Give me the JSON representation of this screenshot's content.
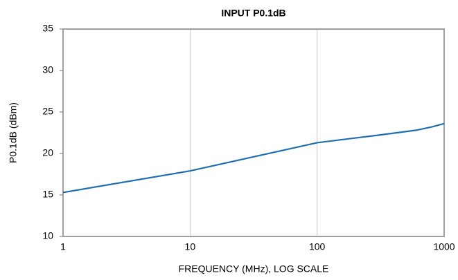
{
  "chart_data": {
    "type": "line",
    "title": "INPUT P0.1dB",
    "xlabel": "FREQUENCY (MHz), LOG SCALE",
    "ylabel": "P0.1dB (dBm)",
    "x": [
      1,
      10,
      100,
      300,
      600,
      800,
      1000
    ],
    "series": [
      {
        "name": "P0.1dB",
        "color": "#1f6fb0",
        "values": [
          15.3,
          17.9,
          21.3,
          22.2,
          22.8,
          23.2,
          23.6
        ]
      }
    ],
    "xlim": [
      1,
      1000
    ],
    "xticks": [
      1,
      10,
      100,
      1000
    ],
    "xscale": "log",
    "ylim": [
      10,
      35
    ],
    "yticks": [
      10,
      15,
      20,
      25,
      30,
      35
    ],
    "grid": "x"
  }
}
